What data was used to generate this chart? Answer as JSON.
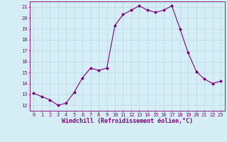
{
  "x": [
    0,
    1,
    2,
    3,
    4,
    5,
    6,
    7,
    8,
    9,
    10,
    11,
    12,
    13,
    14,
    15,
    16,
    17,
    18,
    19,
    20,
    21,
    22,
    23
  ],
  "y": [
    13.1,
    12.8,
    12.5,
    12.0,
    12.2,
    13.2,
    14.5,
    15.4,
    15.2,
    15.4,
    19.3,
    20.3,
    20.7,
    21.1,
    20.7,
    20.5,
    20.7,
    21.1,
    19.0,
    16.8,
    15.1,
    14.4,
    14.0,
    14.2
  ],
  "line_color": "#800080",
  "marker": "D",
  "marker_size": 2.0,
  "bg_color": "#d5eef5",
  "grid_color": "#bbddee",
  "xlabel": "Windchill (Refroidissement éolien,°C)",
  "xlabel_color": "#800080",
  "tick_color": "#800080",
  "label_color": "#800080",
  "ylim": [
    11.5,
    21.5
  ],
  "xlim": [
    -0.5,
    23.5
  ],
  "yticks": [
    12,
    13,
    14,
    15,
    16,
    17,
    18,
    19,
    20,
    21
  ],
  "xticks": [
    0,
    1,
    2,
    3,
    4,
    5,
    6,
    7,
    8,
    9,
    10,
    11,
    12,
    13,
    14,
    15,
    16,
    17,
    18,
    19,
    20,
    21,
    22,
    23
  ],
  "tick_fontsize": 5.0,
  "xlabel_fontsize": 6.0,
  "linewidth": 0.8
}
